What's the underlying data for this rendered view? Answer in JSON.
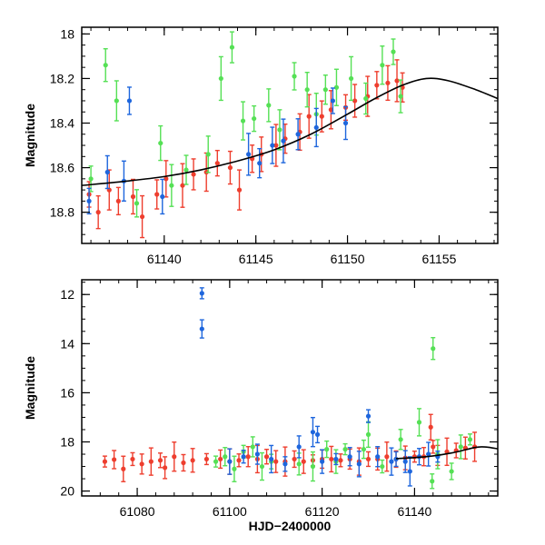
{
  "colors": {
    "red": "#ee3e2e",
    "green": "#55e055",
    "blue": "#1e66dd",
    "model": "#000000"
  },
  "chart_data": [
    {
      "type": "scatter",
      "title": "",
      "ylabel": "Magnitude",
      "xlabel": "",
      "xlim": [
        61135.5,
        61158.2
      ],
      "ylim": [
        18.94,
        17.97
      ],
      "x_ticks": [
        61140,
        61145,
        61150,
        61155
      ],
      "x_tick_labels": [
        "61140",
        "61145",
        "61150",
        "61155"
      ],
      "y_ticks": [
        18.0,
        18.2,
        18.4,
        18.6,
        18.8
      ],
      "y_tick_labels": [
        "18",
        "18.2",
        "18.4",
        "18.6",
        "18.8"
      ],
      "model_curve": {
        "name": "model",
        "x": [
          61135.5,
          61138,
          61140,
          61142,
          61144,
          61146,
          61148,
          61150,
          61151.5,
          61153,
          61154.3,
          61155.5,
          61157,
          61158.2
        ],
        "y": [
          18.68,
          18.66,
          18.64,
          18.61,
          18.57,
          18.52,
          18.45,
          18.36,
          18.29,
          18.23,
          18.2,
          18.21,
          18.25,
          18.29
        ]
      },
      "series": [
        {
          "name": "red",
          "color": "#ee3e2e",
          "points": [
            [
              61135.9,
              18.72
            ],
            [
              61136.4,
              18.8
            ],
            [
              61137.0,
              18.7
            ],
            [
              61137.5,
              18.75
            ],
            [
              61138.3,
              18.73
            ],
            [
              61138.8,
              18.82
            ],
            [
              61139.6,
              18.72
            ],
            [
              61140.1,
              18.65
            ],
            [
              61141.0,
              18.68
            ],
            [
              61141.6,
              18.63
            ],
            [
              61142.3,
              18.62
            ],
            [
              61142.9,
              18.58
            ],
            [
              61143.6,
              18.6
            ],
            [
              61144.1,
              18.7
            ],
            [
              61144.8,
              18.56
            ],
            [
              61145.3,
              18.54
            ],
            [
              61146.1,
              18.5
            ],
            [
              61146.6,
              18.47
            ],
            [
              61147.4,
              18.44
            ],
            [
              61147.9,
              18.37
            ],
            [
              61148.6,
              18.37
            ],
            [
              61149.1,
              18.34
            ],
            [
              61149.9,
              18.33
            ],
            [
              61150.4,
              18.3
            ],
            [
              61151.1,
              18.28
            ],
            [
              61151.6,
              18.23
            ],
            [
              61152.2,
              18.22
            ],
            [
              61152.7,
              18.21
            ],
            [
              61153.0,
              18.24
            ]
          ]
        },
        {
          "name": "green",
          "color": "#55e055",
          "points": [
            [
              61136.0,
              18.65
            ],
            [
              61136.8,
              18.14
            ],
            [
              61137.4,
              18.3
            ],
            [
              61138.5,
              18.76
            ],
            [
              61139.8,
              18.49
            ],
            [
              61140.4,
              18.68
            ],
            [
              61141.2,
              18.61
            ],
            [
              61142.4,
              18.54
            ],
            [
              61143.1,
              18.2
            ],
            [
              61143.7,
              18.06
            ],
            [
              61144.3,
              18.39
            ],
            [
              61144.9,
              18.38
            ],
            [
              61145.7,
              18.32
            ],
            [
              61146.3,
              18.43
            ],
            [
              61147.1,
              18.19
            ],
            [
              61147.8,
              18.25
            ],
            [
              61148.3,
              18.36
            ],
            [
              61148.8,
              18.25
            ],
            [
              61149.4,
              18.24
            ],
            [
              61150.2,
              18.2
            ],
            [
              61151.0,
              18.29
            ],
            [
              61151.9,
              18.14
            ],
            [
              61152.5,
              18.08
            ],
            [
              61152.9,
              18.28
            ]
          ]
        },
        {
          "name": "blue",
          "color": "#1e66dd",
          "points": [
            [
              61135.9,
              18.75
            ],
            [
              61136.9,
              18.62
            ],
            [
              61137.8,
              18.66
            ],
            [
              61138.1,
              18.3
            ],
            [
              61139.9,
              18.73
            ],
            [
              61144.6,
              18.54
            ],
            [
              61145.2,
              18.58
            ],
            [
              61145.9,
              18.5
            ],
            [
              61146.5,
              18.48
            ],
            [
              61147.3,
              18.45
            ],
            [
              61148.3,
              18.42
            ],
            [
              61149.2,
              18.3
            ],
            [
              61149.9,
              18.4
            ]
          ]
        }
      ]
    },
    {
      "type": "scatter",
      "title": "",
      "ylabel": "Magnitude",
      "xlabel": "HJD−2400000",
      "xlim": [
        61068,
        61158
      ],
      "ylim": [
        20.2,
        11.4
      ],
      "x_ticks": [
        61080,
        61100,
        61120,
        61140
      ],
      "x_tick_labels": [
        "61080",
        "61100",
        "61120",
        "61140"
      ],
      "y_ticks": [
        12,
        14,
        16,
        18,
        20
      ],
      "y_tick_labels": [
        "12",
        "14",
        "16",
        "18",
        "20"
      ],
      "model_curve": {
        "name": "model",
        "x": [
          61136,
          61140,
          61144,
          61148,
          61151,
          61153,
          61154.5,
          61156,
          61158
        ],
        "y": [
          18.68,
          18.64,
          18.57,
          18.45,
          18.32,
          18.23,
          18.2,
          18.22,
          18.28
        ]
      },
      "series": [
        {
          "name": "red",
          "color": "#ee3e2e",
          "points": [
            [
              61073,
              18.8
            ],
            [
              61075,
              18.72
            ],
            [
              61077,
              19.1
            ],
            [
              61079,
              18.7
            ],
            [
              61081,
              18.9
            ],
            [
              61083,
              18.8
            ],
            [
              61085,
              18.75
            ],
            [
              61086,
              19.05
            ],
            [
              61088,
              18.6
            ],
            [
              61090,
              18.85
            ],
            [
              61092,
              18.75
            ],
            [
              61095,
              18.7
            ],
            [
              61098,
              18.7
            ],
            [
              61100,
              18.8
            ],
            [
              61102,
              18.75
            ],
            [
              61104,
              18.6
            ],
            [
              61106,
              18.7
            ],
            [
              61108,
              18.6
            ],
            [
              61110,
              18.8
            ],
            [
              61112,
              18.8
            ],
            [
              61114,
              18.7
            ],
            [
              61116,
              18.8
            ],
            [
              61118,
              18.75
            ],
            [
              61120,
              18.7
            ],
            [
              61122,
              18.7
            ],
            [
              61124,
              18.75
            ],
            [
              61126,
              18.7
            ],
            [
              61128,
              18.8
            ],
            [
              61130,
              18.7
            ],
            [
              61132,
              18.7
            ],
            [
              61134,
              18.6
            ],
            [
              61136,
              18.7
            ],
            [
              61138,
              18.65
            ],
            [
              61140,
              18.6
            ],
            [
              61142,
              18.6
            ],
            [
              61143.5,
              17.4
            ],
            [
              61144,
              18.2
            ],
            [
              61145,
              18.55
            ],
            [
              61147,
              18.4
            ],
            [
              61149,
              18.35
            ],
            [
              61151,
              18.25
            ],
            [
              61153,
              18.2
            ]
          ]
        },
        {
          "name": "green",
          "color": "#55e055",
          "points": [
            [
              61097,
              18.8
            ],
            [
              61099,
              18.6
            ],
            [
              61101,
              19.1
            ],
            [
              61103,
              18.4
            ],
            [
              61105,
              18.2
            ],
            [
              61107,
              19.0
            ],
            [
              61109,
              18.8
            ],
            [
              61115,
              18.9
            ],
            [
              61118,
              19.0
            ],
            [
              61121,
              18.3
            ],
            [
              61123,
              18.8
            ],
            [
              61125,
              18.3
            ],
            [
              61129,
              18.3
            ],
            [
              61130,
              17.7
            ],
            [
              61133,
              19.0
            ],
            [
              61137,
              17.9
            ],
            [
              61141,
              17.2
            ],
            [
              61143.8,
              19.6
            ],
            [
              61144,
              14.2
            ],
            [
              61145,
              18.5
            ],
            [
              61148,
              19.2
            ],
            [
              61150,
              18.2
            ],
            [
              61152,
              17.9
            ]
          ]
        },
        {
          "name": "blue",
          "color": "#1e66dd",
          "points": [
            [
              61094,
              11.95
            ],
            [
              61094,
              13.4
            ],
            [
              61100,
              18.8
            ],
            [
              61103,
              18.6
            ],
            [
              61106,
              18.5
            ],
            [
              61109,
              18.7
            ],
            [
              61112,
              18.9
            ],
            [
              61115,
              18.2
            ],
            [
              61118,
              17.6
            ],
            [
              61119,
              17.7
            ],
            [
              61120,
              18.8
            ],
            [
              61123,
              18.7
            ],
            [
              61126,
              18.6
            ],
            [
              61128,
              18.9
            ],
            [
              61130,
              16.95
            ],
            [
              61132,
              18.6
            ],
            [
              61135,
              18.8
            ],
            [
              61136,
              18.7
            ],
            [
              61138,
              18.8
            ],
            [
              61139,
              19.2
            ],
            [
              61141,
              18.6
            ],
            [
              61143,
              18.5
            ],
            [
              61145,
              18.6
            ]
          ]
        }
      ]
    }
  ]
}
